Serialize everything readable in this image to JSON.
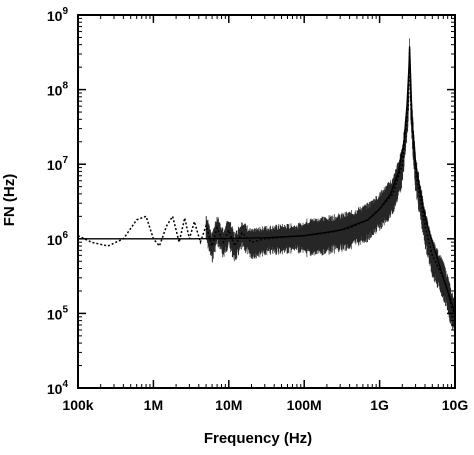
{
  "chart_data": {
    "type": "line",
    "xlabel": "Frequency (Hz)",
    "ylabel": "FN (Hz)",
    "x_scale": "log",
    "y_scale": "log",
    "xlim": [
      100000,
      10000000000
    ],
    "ylim": [
      10000,
      1000000000
    ],
    "x_ticks": [
      {
        "value": 100000,
        "label": "100k"
      },
      {
        "value": 1000000,
        "label": "1M"
      },
      {
        "value": 10000000,
        "label": "10M"
      },
      {
        "value": 100000000,
        "label": "100M"
      },
      {
        "value": 1000000000,
        "label": "1G"
      },
      {
        "value": 10000000000,
        "label": "10G"
      }
    ],
    "y_ticks": [
      {
        "value": 10000,
        "base": "10",
        "exp": "4"
      },
      {
        "value": 100000,
        "base": "10",
        "exp": "5"
      },
      {
        "value": 1000000,
        "base": "10",
        "exp": "6"
      },
      {
        "value": 10000000,
        "base": "10",
        "exp": "7"
      },
      {
        "value": 100000000,
        "base": "10",
        "exp": "8"
      },
      {
        "value": 1000000000,
        "base": "10",
        "exp": "9"
      }
    ],
    "grid": false,
    "legend": "none",
    "series": [
      {
        "style": "solid",
        "x": [
          100000,
          300000,
          1000000,
          3000000,
          10000000,
          30000000,
          100000000,
          300000000,
          700000000,
          1000000000,
          1400000000,
          1800000000,
          2100000000,
          2300000000,
          2450000000,
          2500000000,
          2550000000,
          2700000000,
          3000000000,
          3500000000,
          4000000000,
          5000000000,
          6000000000,
          7000000000,
          8000000000,
          10000000000
        ],
        "y": [
          1000000,
          1000000,
          1000000,
          1000000,
          1010000,
          1030000,
          1100000,
          1300000,
          1800000,
          2500000,
          4000000,
          8000000,
          20000000,
          60000000,
          200000000,
          380000000,
          200000000,
          40000000,
          10000000,
          4000000,
          2000000,
          900000,
          500000,
          300000,
          200000,
          100000
        ]
      },
      {
        "style": "dotted",
        "x": [
          100000,
          150000,
          250000,
          400000,
          600000,
          800000,
          1000000,
          1200000,
          1500000,
          1800000,
          2200000,
          2600000,
          3000000,
          3500000,
          4200000,
          5000000,
          6000000,
          7000000,
          8500000,
          10000000,
          12000000,
          15000000,
          20000000,
          30000000,
          50000000,
          100000000,
          200000000,
          400000000,
          700000000,
          1000000000,
          1500000000,
          2000000000,
          2400000000,
          2500000000,
          2600000000,
          3000000000,
          4000000000,
          5000000000,
          7000000000,
          8000000000,
          9000000000,
          10000000000
        ],
        "y": [
          1100000,
          900000,
          800000,
          1000000,
          1800000,
          2000000,
          1000000,
          800000,
          1500000,
          2000000,
          900000,
          1900000,
          1000000,
          1700000,
          900000,
          1500000,
          800000,
          1400000,
          900000,
          1300000,
          800000,
          1200000,
          900000,
          1000000,
          1050000,
          1100000,
          1200000,
          1400000,
          1800000,
          2500000,
          4000000,
          10000000,
          60000000,
          350000000,
          60000000,
          8000000,
          1500000,
          600000,
          300000,
          200000,
          120000,
          100000
        ]
      }
    ]
  }
}
